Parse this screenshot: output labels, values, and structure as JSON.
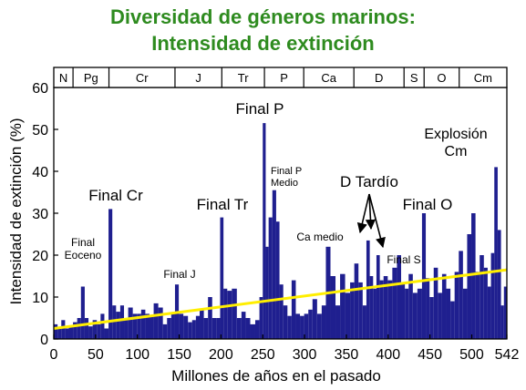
{
  "chart_data": {
    "type": "bar",
    "title": [
      "Diversidad de géneros marinos:",
      "Intensidad de extinción"
    ],
    "xlabel": "Millones de años en el pasado",
    "ylabel": "Intensidad de extinción (%)",
    "xlim": [
      0,
      542
    ],
    "ylim": [
      0,
      60
    ],
    "x_reversed_display": false,
    "xticks": [
      0,
      50,
      100,
      150,
      200,
      250,
      300,
      350,
      400,
      450,
      500,
      542
    ],
    "yticks": [
      0,
      10,
      20,
      30,
      40,
      50,
      60
    ],
    "bar_color": "#1f1f8f",
    "trend_color": "#ffee00",
    "periods": [
      {
        "label": "N",
        "start": 0,
        "end": 23
      },
      {
        "label": "Pg",
        "start": 23,
        "end": 66
      },
      {
        "label": "Cr",
        "start": 66,
        "end": 145
      },
      {
        "label": "J",
        "start": 145,
        "end": 201
      },
      {
        "label": "Tr",
        "start": 201,
        "end": 252
      },
      {
        "label": "P",
        "start": 252,
        "end": 299
      },
      {
        "label": "Ca",
        "start": 299,
        "end": 359
      },
      {
        "label": "D",
        "start": 359,
        "end": 419
      },
      {
        "label": "S",
        "start": 419,
        "end": 443
      },
      {
        "label": "O",
        "start": 443,
        "end": 485
      },
      {
        "label": "Cm",
        "start": 485,
        "end": 542
      }
    ],
    "trend_line": {
      "x": [
        0,
        542
      ],
      "y": [
        2.5,
        16.5
      ]
    },
    "x": [
      2,
      7,
      11,
      16,
      20,
      26,
      30,
      35,
      39,
      44,
      49,
      54,
      58,
      63,
      68,
      72,
      77,
      82,
      86,
      92,
      97,
      102,
      107,
      112,
      117,
      122,
      128,
      133,
      138,
      143,
      147,
      152,
      158,
      163,
      168,
      172,
      177,
      182,
      187,
      192,
      197,
      201,
      205,
      210,
      216,
      222,
      227,
      232,
      238,
      244,
      248,
      252,
      255,
      259,
      264,
      268,
      272,
      277,
      282,
      287,
      292,
      297,
      302,
      307,
      312,
      318,
      323,
      328,
      334,
      340,
      345,
      352,
      357,
      362,
      367,
      372,
      376,
      380,
      384,
      388,
      392,
      397,
      402,
      408,
      413,
      418,
      422,
      427,
      432,
      438,
      443,
      447,
      452,
      457,
      462,
      467,
      472,
      477,
      482,
      487,
      492,
      497,
      502,
      507,
      512,
      517,
      521,
      525,
      529,
      533,
      537,
      540
    ],
    "values": [
      3.5,
      2.5,
      4.5,
      2.5,
      3,
      4,
      5,
      12.5,
      5,
      3,
      4.5,
      3.5,
      6,
      2.5,
      31,
      8,
      6.5,
      8,
      5,
      7.5,
      6,
      6,
      7,
      6,
      5.5,
      8.5,
      7.5,
      3.5,
      5,
      6,
      13,
      6,
      5.5,
      4,
      4.5,
      5.5,
      7,
      5,
      10,
      5,
      5,
      29,
      12,
      11.5,
      12,
      5,
      6.5,
      5,
      3.5,
      4.5,
      10,
      51.5,
      22,
      29,
      35.5,
      28,
      13,
      8,
      5.5,
      14,
      6,
      5.5,
      6,
      7,
      9.5,
      6,
      8,
      22,
      15,
      8,
      15.5,
      11,
      13.5,
      18,
      13.5,
      8,
      23.5,
      15,
      12,
      20,
      14,
      15,
      14,
      17,
      20,
      13.5,
      12,
      15.5,
      11,
      12,
      30,
      14.5,
      10,
      17,
      11,
      15.5,
      12,
      9,
      16,
      21,
      12,
      25,
      30,
      16,
      20,
      17,
      12.5,
      20.5,
      41,
      26,
      8,
      12.5
    ]
  },
  "annotations": [
    {
      "text": "Final\nEoceno",
      "key": "eoceno"
    },
    {
      "text": "Final Cr",
      "key": "cr"
    },
    {
      "text": "Final J",
      "key": "j"
    },
    {
      "text": "Final Tr",
      "key": "tr"
    },
    {
      "text": "Final P",
      "key": "p"
    },
    {
      "text": "Final P\nMedio",
      "key": "pmedio"
    },
    {
      "text": "Ca medio",
      "key": "camedio"
    },
    {
      "text": "D Tardío",
      "key": "dtardio"
    },
    {
      "text": "Final S",
      "key": "s"
    },
    {
      "text": "Final O",
      "key": "o"
    },
    {
      "text": "Explosión\nCm",
      "key": "cm"
    }
  ]
}
